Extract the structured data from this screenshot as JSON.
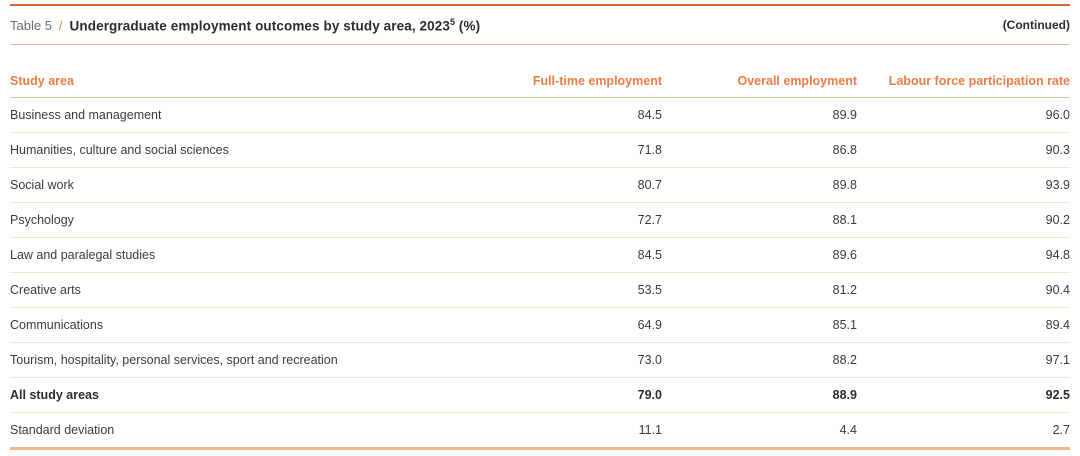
{
  "header": {
    "table_label": "Table 5",
    "separator": "/",
    "title": "Undergraduate employment outcomes by study area, 2023",
    "title_superscript": "5",
    "title_suffix": " (%)",
    "continued": "(Continued)"
  },
  "table": {
    "columns": [
      "Study area",
      "Full-time employment",
      "Overall employment",
      "Labour force participation rate"
    ],
    "rows": [
      {
        "label": "Business and management",
        "values": [
          "84.5",
          "89.9",
          "96.0"
        ],
        "bold": false
      },
      {
        "label": "Humanities, culture and social sciences",
        "values": [
          "71.8",
          "86.8",
          "90.3"
        ],
        "bold": false
      },
      {
        "label": "Social work",
        "values": [
          "80.7",
          "89.8",
          "93.9"
        ],
        "bold": false
      },
      {
        "label": "Psychology",
        "values": [
          "72.7",
          "88.1",
          "90.2"
        ],
        "bold": false
      },
      {
        "label": "Law and paralegal studies",
        "values": [
          "84.5",
          "89.6",
          "94.8"
        ],
        "bold": false
      },
      {
        "label": "Creative arts",
        "values": [
          "53.5",
          "81.2",
          "90.4"
        ],
        "bold": false
      },
      {
        "label": "Communications",
        "values": [
          "64.9",
          "85.1",
          "89.4"
        ],
        "bold": false
      },
      {
        "label": "Tourism, hospitality, personal services, sport and recreation",
        "values": [
          "73.0",
          "88.2",
          "97.1"
        ],
        "bold": false
      },
      {
        "label": "All study areas",
        "values": [
          "79.0",
          "88.9",
          "92.5"
        ],
        "bold": true
      },
      {
        "label": "Standard deviation",
        "values": [
          "11.1",
          "4.4",
          "2.7"
        ],
        "bold": false
      }
    ]
  },
  "colors": {
    "accent": "#ED7D45",
    "top_rule": "#D2653C",
    "bottom_rule": "#F0B78E",
    "title_rule": "#EFB993",
    "header_rule": "#F0C29B",
    "row_divider": "#F8E3D0",
    "text": "#3B3B3B",
    "title_text": "#2D2D2D",
    "muted": "#6E6E6E",
    "bg": "#FFFFFF"
  },
  "chart_data": {
    "type": "table",
    "title": "Undergraduate employment outcomes by study area, 2023 (%)",
    "columns": [
      "Study area",
      "Full-time employment",
      "Overall employment",
      "Labour force participation rate"
    ],
    "rows": [
      [
        "Business and management",
        84.5,
        89.9,
        96.0
      ],
      [
        "Humanities, culture and social sciences",
        71.8,
        86.8,
        90.3
      ],
      [
        "Social work",
        80.7,
        89.8,
        93.9
      ],
      [
        "Psychology",
        72.7,
        88.1,
        90.2
      ],
      [
        "Law and paralegal studies",
        84.5,
        89.6,
        94.8
      ],
      [
        "Creative arts",
        53.5,
        81.2,
        90.4
      ],
      [
        "Communications",
        64.9,
        85.1,
        89.4
      ],
      [
        "Tourism, hospitality, personal services, sport and recreation",
        73.0,
        88.2,
        97.1
      ],
      [
        "All study areas",
        79.0,
        88.9,
        92.5
      ],
      [
        "Standard deviation",
        11.1,
        4.4,
        2.7
      ]
    ]
  }
}
